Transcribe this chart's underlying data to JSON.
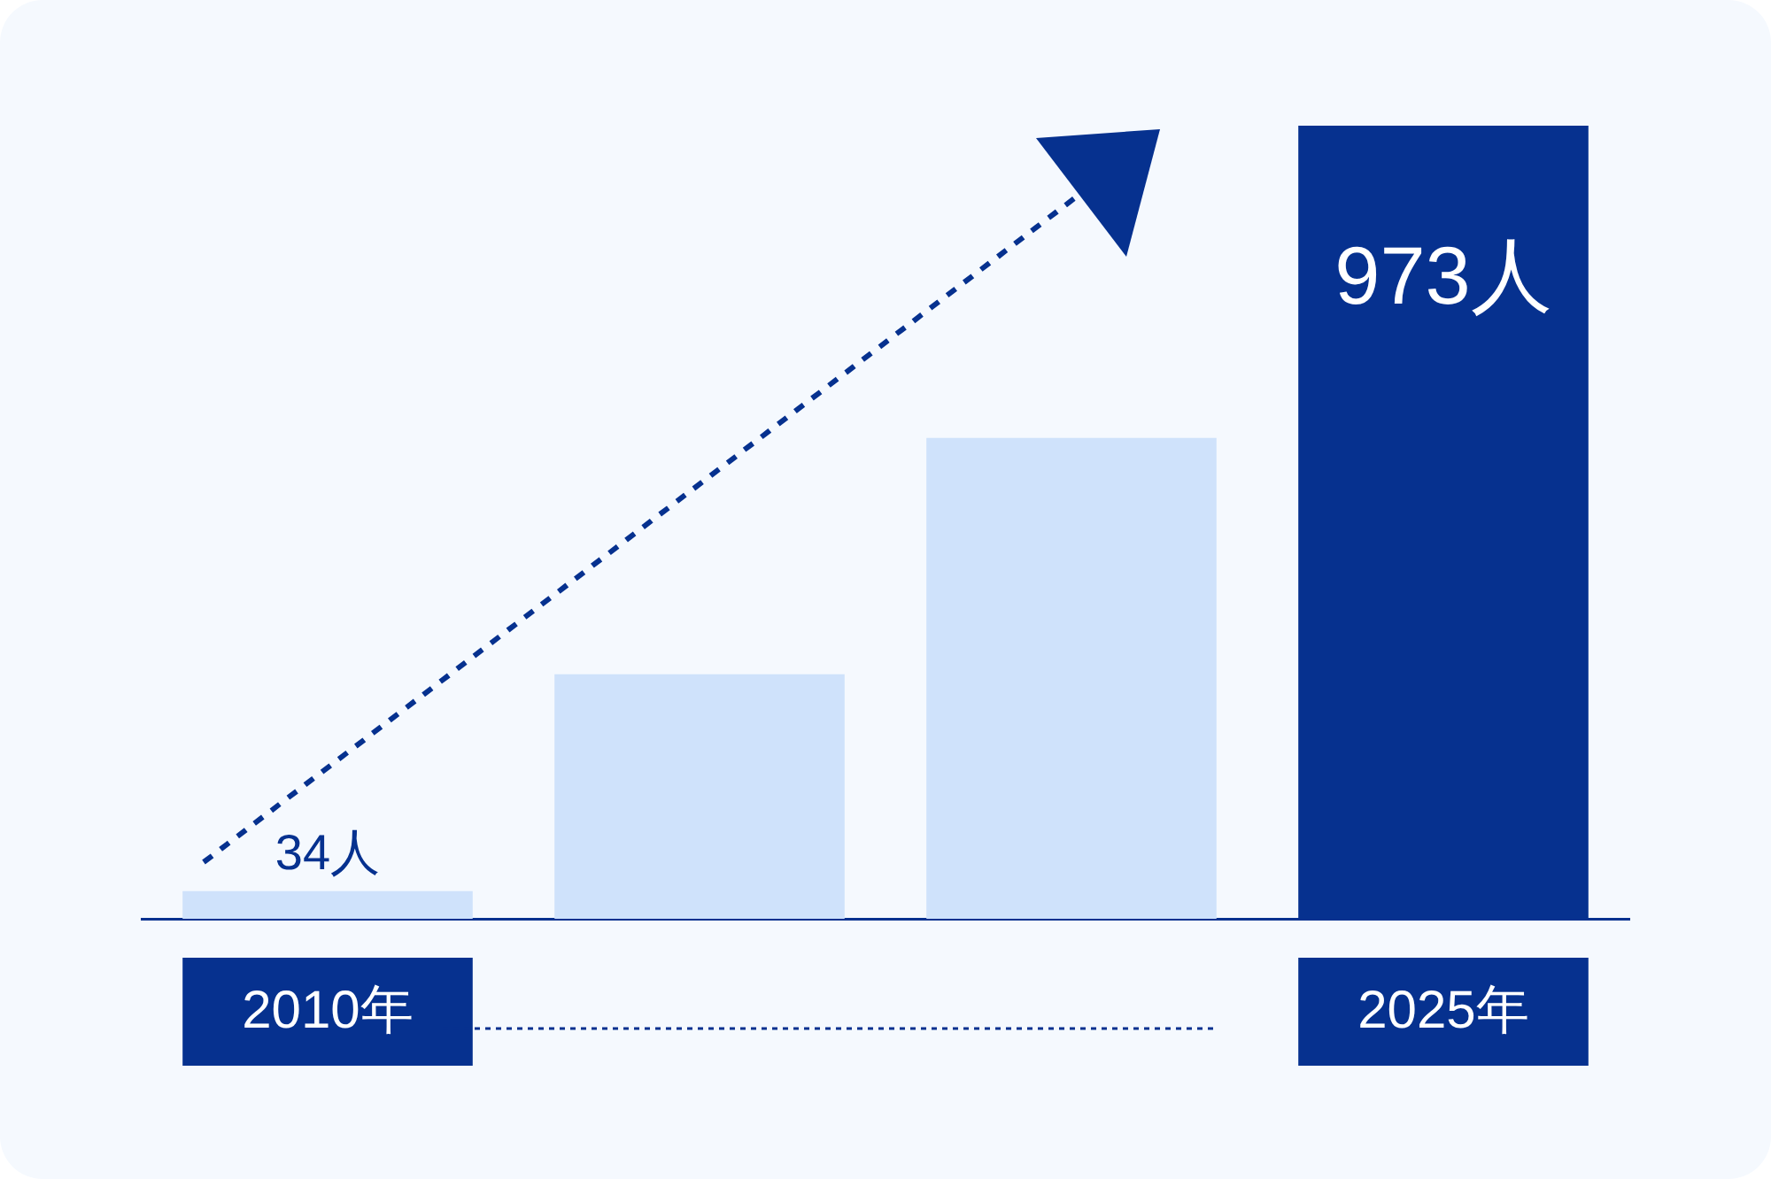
{
  "chart_data": {
    "type": "bar",
    "categories": [
      "2010年",
      null,
      null,
      "2025年"
    ],
    "values": [
      34,
      300,
      590,
      973
    ],
    "colors": [
      "#cfe2fb",
      "#cfe2fb",
      "#cfe2fb",
      "#06318f"
    ],
    "value_labels": [
      "34人",
      null,
      null,
      "973人"
    ]
  }
}
